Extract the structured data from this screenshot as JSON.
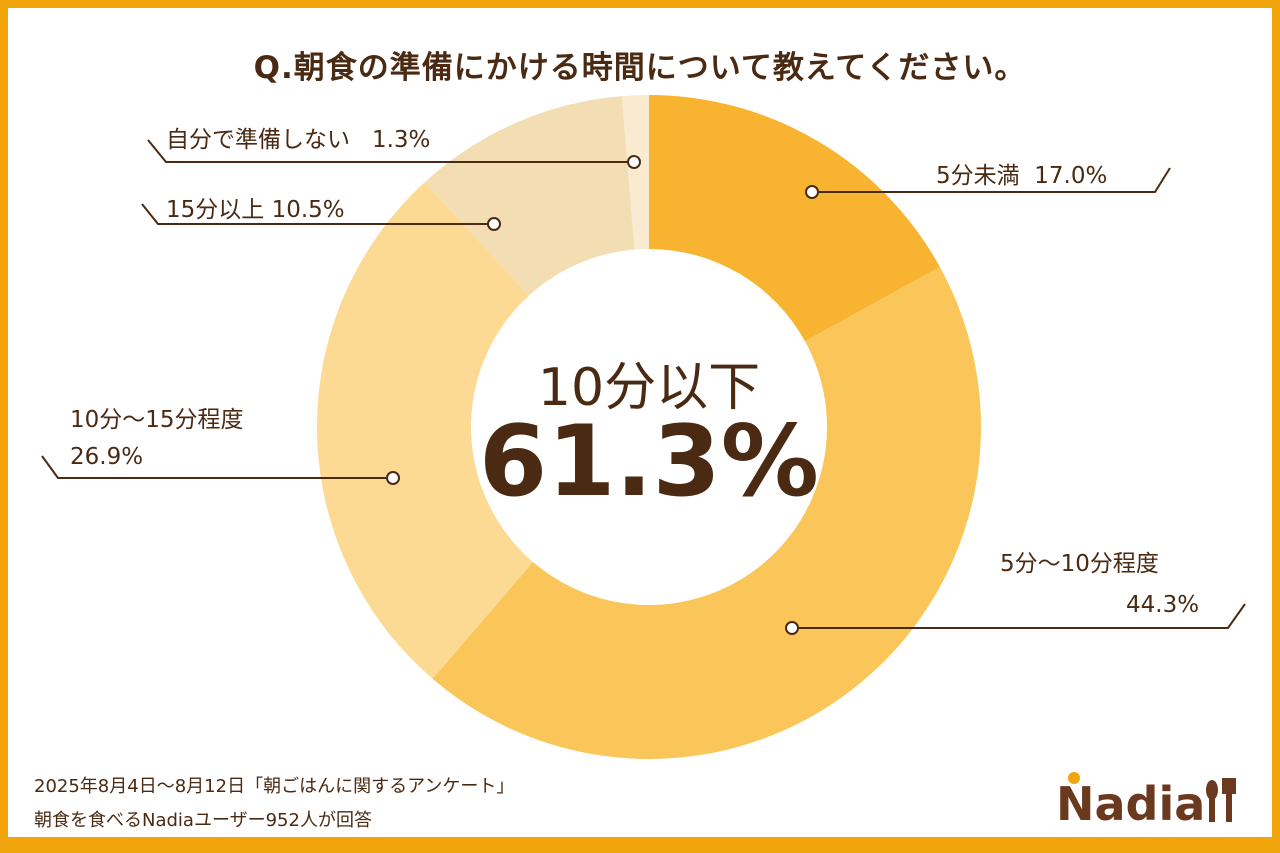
{
  "title": "Q.朝食の準備にかける時間について教えてください。",
  "chart_data": {
    "type": "pie",
    "donut": true,
    "title": "Q.朝食の準備にかける時間について教えてください。",
    "categories": [
      "5分未満",
      "5分〜10分程度",
      "10分〜15分程度",
      "15分以上",
      "自分で準備しない"
    ],
    "values": [
      17.0,
      44.3,
      26.9,
      10.5,
      1.3
    ],
    "labels": [
      "17.0%",
      "44.3%",
      "26.9%",
      "10.5%",
      "1.3%"
    ],
    "colors": [
      "#F8B431",
      "#FAC65A",
      "#FCDA93",
      "#F3DDB2",
      "#FAEBD0"
    ],
    "direction": "clockwise from top",
    "center_label": "10分以下",
    "center_value": "61.3%"
  },
  "footnote": {
    "line1": "2025年8月4日〜8月12日「朝ごはんに関するアンケート」",
    "line2": "朝食を食べるNadiaユーザー952人が回答"
  },
  "logo": "Nadia",
  "colors": {
    "border": "#F2A40C",
    "text": "#4A2A12"
  }
}
